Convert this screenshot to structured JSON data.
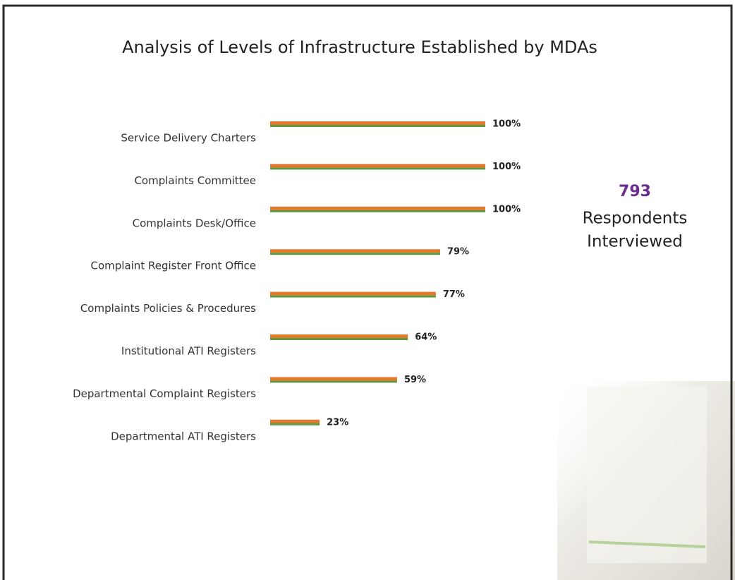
{
  "chart_data": {
    "type": "bar",
    "orientation": "horizontal",
    "title": "Analysis of Levels of Infrastructure Established by MDAs",
    "categories": [
      "Service Delivery Charters",
      "Complaints Committee",
      "Complaints Desk/Office",
      "Complaint Register Front Office",
      "Complaints Policies & Procedures",
      "Institutional ATI Registers",
      "Departmental Complaint Registers",
      "Departmental  ATI Registers"
    ],
    "values": [
      100,
      100,
      100,
      79,
      77,
      64,
      59,
      23
    ],
    "value_labels": [
      "100%",
      "100%",
      "100%",
      "79%",
      "77%",
      "64%",
      "59%",
      "23%"
    ],
    "color": "#e5772c",
    "stripe_color": "#5e9a3e",
    "annotation": {
      "count": 793,
      "lines": [
        "Respondents",
        "Interviewed"
      ],
      "count_color": "#6a2c8e"
    }
  }
}
